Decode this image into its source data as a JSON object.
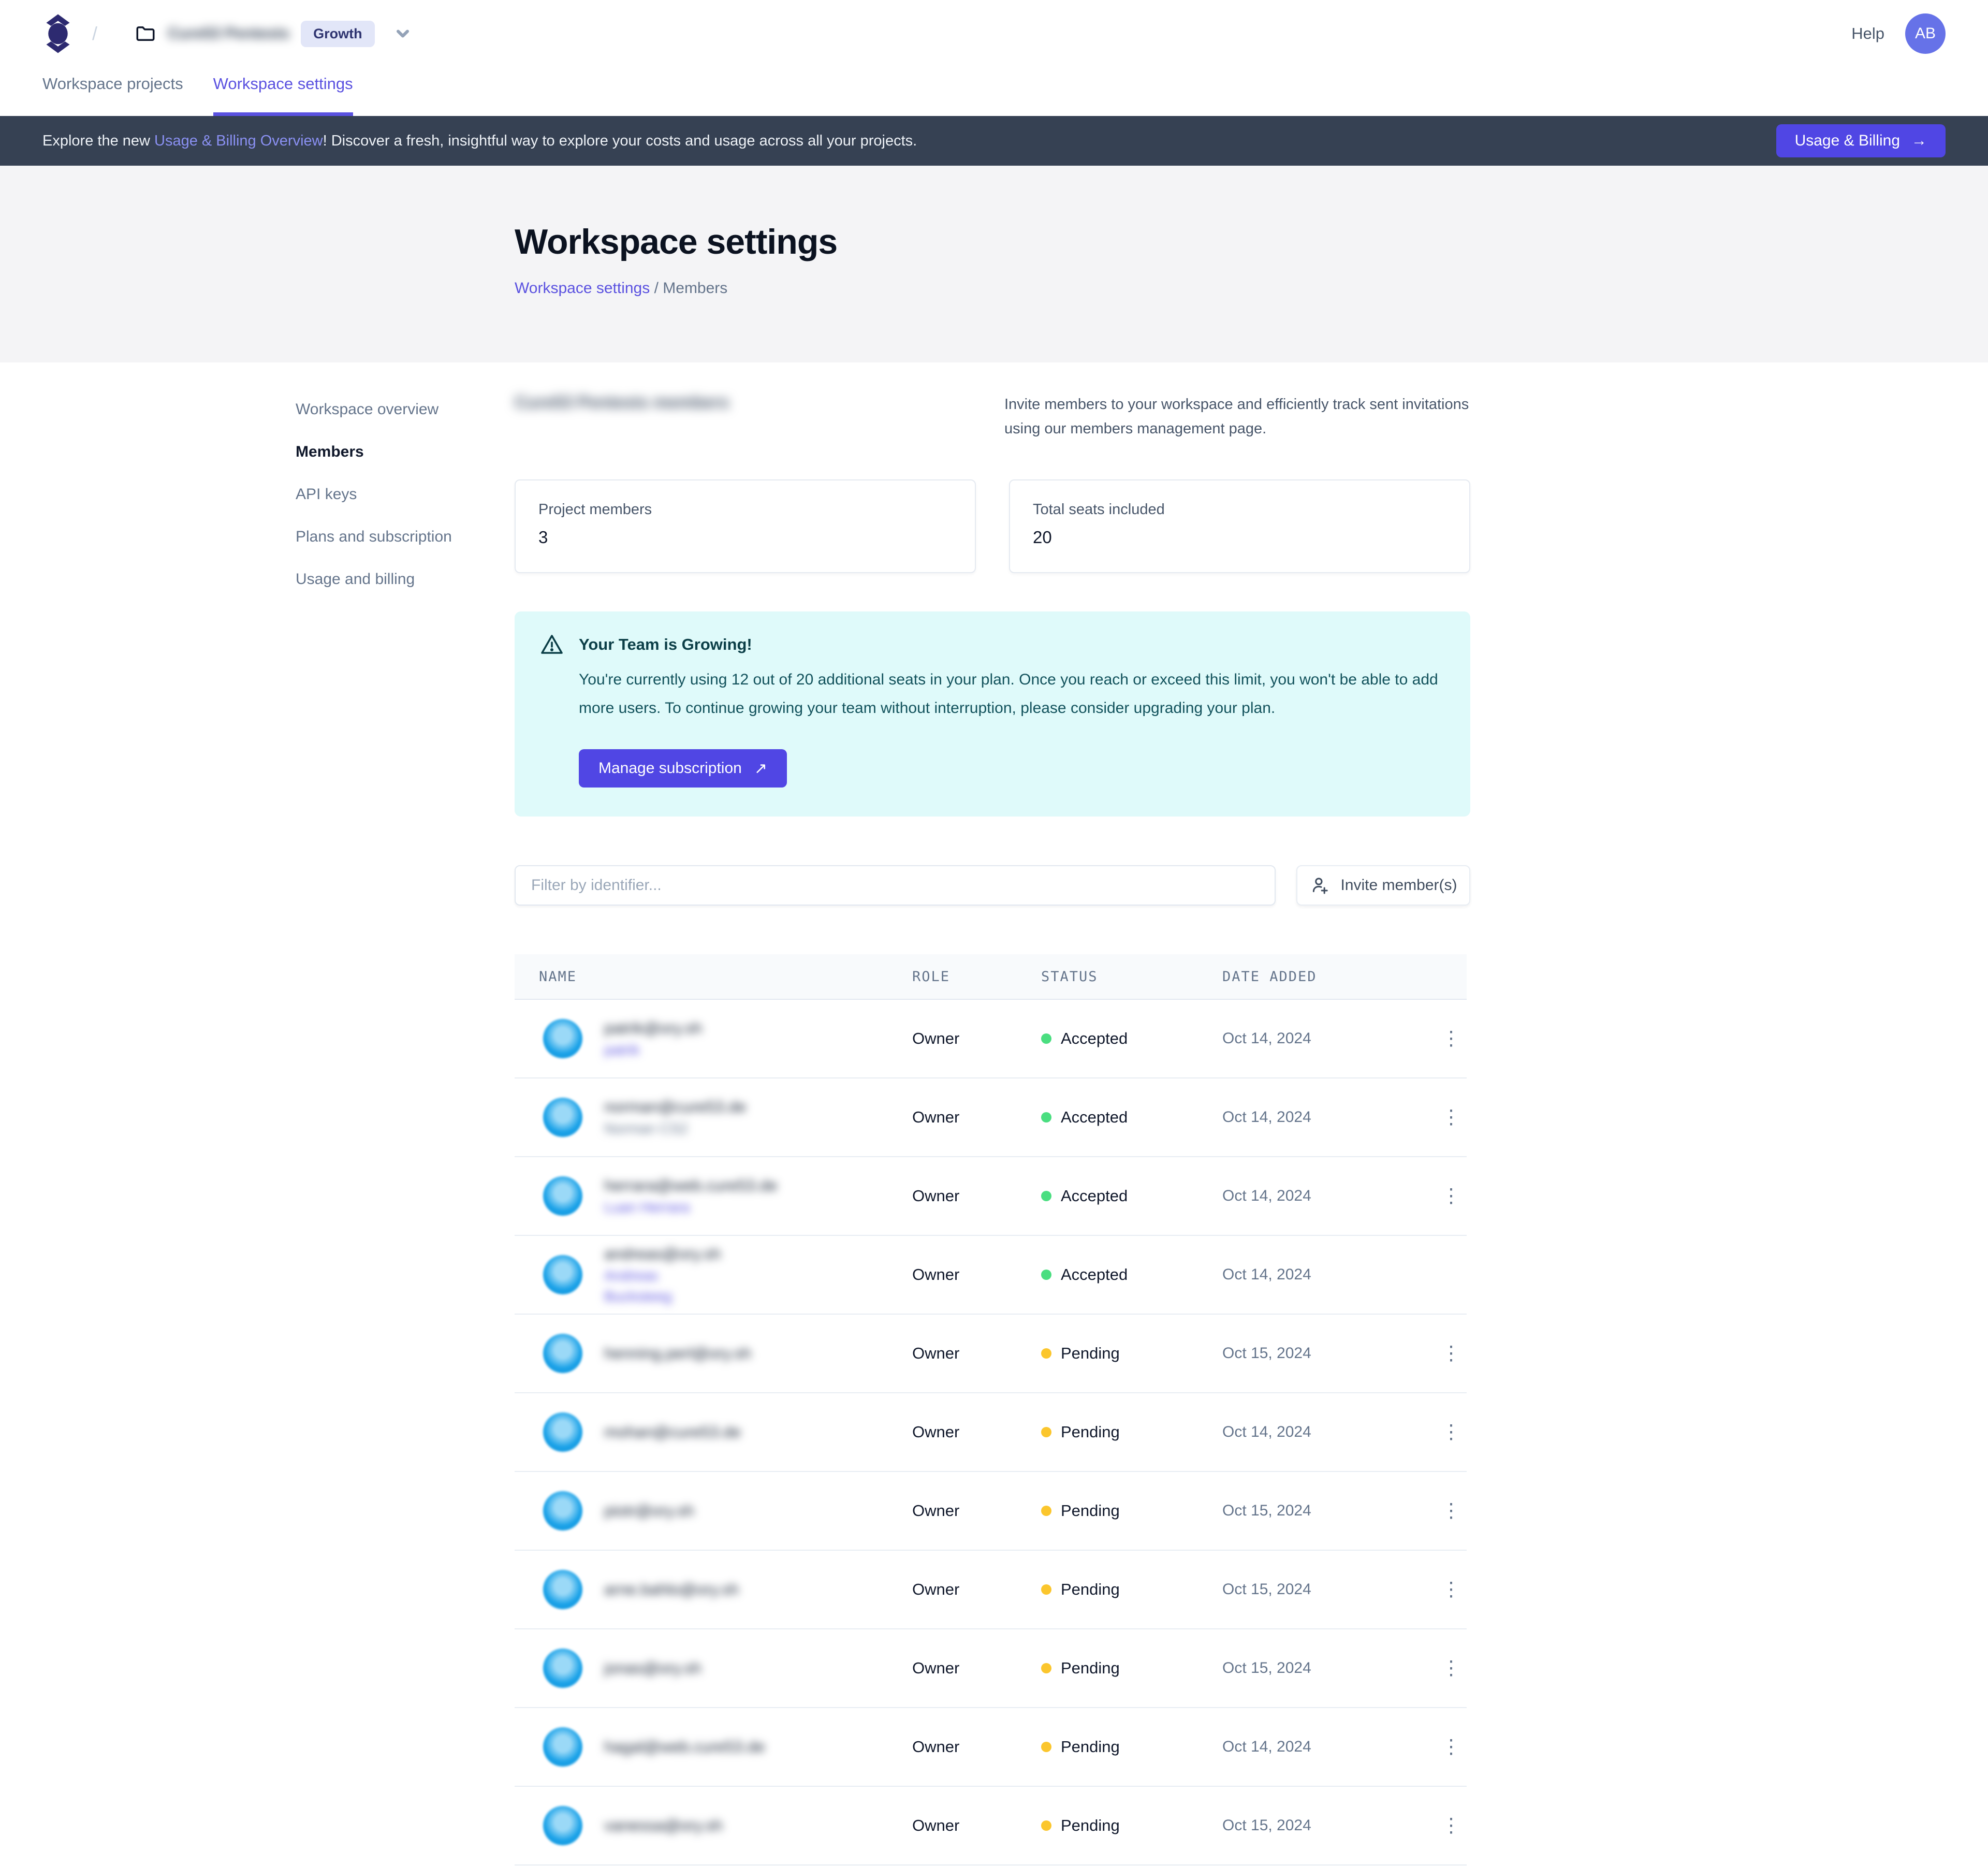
{
  "topbar": {
    "breadcrumb_slash": "/",
    "workspace_name": "Cure53 Pentests",
    "plan_badge": "Growth",
    "help_label": "Help",
    "avatar_initials": "AB"
  },
  "tabs": [
    {
      "label": "Workspace projects",
      "active": false
    },
    {
      "label": "Workspace settings",
      "active": true
    }
  ],
  "banner": {
    "text_prefix": "Explore the new ",
    "link_text": "Usage & Billing Overview",
    "text_suffix": "! Discover a fresh, insightful way to explore your costs and usage across all your projects.",
    "button_label": "Usage & Billing",
    "button_arrow": "→"
  },
  "hero": {
    "title": "Workspace settings",
    "breadcrumb_link": "Workspace settings",
    "breadcrumb_separator": "/",
    "breadcrumb_current": "Members"
  },
  "sidebar": {
    "items": [
      {
        "label": "Workspace overview",
        "active": false
      },
      {
        "label": "Members",
        "active": true
      },
      {
        "label": "API keys",
        "active": false
      },
      {
        "label": "Plans and subscription",
        "active": false
      },
      {
        "label": "Usage and billing",
        "active": false
      }
    ]
  },
  "members": {
    "heading": "Cure53 Pentests members",
    "intro": "Invite members to your workspace and efficiently track sent invitations using our members management page.",
    "stats": [
      {
        "label": "Project members",
        "value": "3"
      },
      {
        "label": "Total seats included",
        "value": "20"
      }
    ],
    "alert": {
      "title": "Your Team is Growing!",
      "body": "You're currently using 12 out of 20 additional seats in your plan. Once you reach or exceed this limit, you won't be able to add more users. To continue growing your team without interruption, please consider upgrading your plan.",
      "button_label": "Manage subscription",
      "button_arrow": "↗"
    },
    "filter_placeholder": "Filter by identifier...",
    "invite_button_label": "Invite member(s)",
    "table": {
      "columns": [
        "NAME",
        "ROLE",
        "STATUS",
        "DATE ADDED"
      ],
      "menu_glyph": "⋮",
      "rows": [
        {
          "email": "patrik@ory.sh",
          "sublines": [
            {
              "text": "patrik",
              "style": "link"
            }
          ],
          "role": "Owner",
          "status": "Accepted",
          "date": "Oct 14, 2024",
          "has_menu": true
        },
        {
          "email": "norman@cure53.de",
          "sublines": [
            {
              "text": "Norman CS2",
              "style": "muted"
            }
          ],
          "role": "Owner",
          "status": "Accepted",
          "date": "Oct 14, 2024",
          "has_menu": true
        },
        {
          "email": "herrara@web.cure53.de",
          "sublines": [
            {
              "text": "Luan Herrara",
              "style": "link"
            }
          ],
          "role": "Owner",
          "status": "Accepted",
          "date": "Oct 14, 2024",
          "has_menu": true
        },
        {
          "email": "andreas@ory.sh",
          "sublines": [
            {
              "text": "Andreas",
              "style": "link"
            },
            {
              "text": "Bucksteeg",
              "style": "link"
            }
          ],
          "role": "Owner",
          "status": "Accepted",
          "date": "Oct 14, 2024",
          "has_menu": false
        },
        {
          "email": "henning.perl@ory.sh",
          "sublines": [],
          "role": "Owner",
          "status": "Pending",
          "date": "Oct 15, 2024",
          "has_menu": true
        },
        {
          "email": "mohan@cure53.de",
          "sublines": [],
          "role": "Owner",
          "status": "Pending",
          "date": "Oct 14, 2024",
          "has_menu": true
        },
        {
          "email": "piotr@ory.sh",
          "sublines": [],
          "role": "Owner",
          "status": "Pending",
          "date": "Oct 15, 2024",
          "has_menu": true
        },
        {
          "email": "arne.bahlo@ory.sh",
          "sublines": [],
          "role": "Owner",
          "status": "Pending",
          "date": "Oct 15, 2024",
          "has_menu": true
        },
        {
          "email": "jonas@ory.sh",
          "sublines": [],
          "role": "Owner",
          "status": "Pending",
          "date": "Oct 15, 2024",
          "has_menu": true
        },
        {
          "email": "hagal@web.cure53.de",
          "sublines": [],
          "role": "Owner",
          "status": "Pending",
          "date": "Oct 14, 2024",
          "has_menu": true
        },
        {
          "email": "vanessa@ory.sh",
          "sublines": [],
          "role": "Owner",
          "status": "Pending",
          "date": "Oct 15, 2024",
          "has_menu": true
        }
      ]
    }
  },
  "colors": {
    "accent_purple": "#5046e4",
    "link_purple": "#5a51e0",
    "banner_bg": "#364153",
    "alert_bg": "#dffafa",
    "alert_text": "#12525c",
    "status_accepted": "#4ade80",
    "status_pending": "#fbc62d",
    "avatar_bg": "#6672e8"
  }
}
